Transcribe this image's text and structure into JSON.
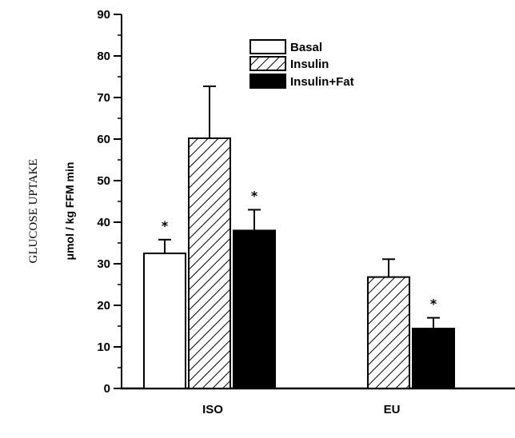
{
  "chart_data": {
    "type": "bar",
    "title": "",
    "ylabel": "GLUCOSE UPTAKE",
    "ylabel_units": "μmol / kg FFM min",
    "ylim": [
      0,
      90
    ],
    "yticks": [
      0,
      10,
      20,
      30,
      40,
      50,
      60,
      70,
      80,
      90
    ],
    "ytick_labels": [
      "0",
      "10",
      "20",
      "30",
      "40",
      "50",
      "60",
      "70",
      "80",
      "90"
    ],
    "categories": [
      "ISO",
      "EU"
    ],
    "grid": false,
    "legend_position": "top-center",
    "series": [
      {
        "name": "Basal",
        "fill": "open",
        "color": "#ffffff",
        "values": [
          32.5,
          null
        ],
        "errors": [
          3.3,
          null
        ],
        "significance": [
          "*",
          null
        ]
      },
      {
        "name": "Insulin",
        "fill": "hatched",
        "color": "#000000",
        "values": [
          60.2,
          26.8
        ],
        "errors": [
          12.5,
          4.3
        ],
        "significance": [
          null,
          null
        ]
      },
      {
        "name": "Insulin+Fat",
        "fill": "solid",
        "color": "#000000",
        "values": [
          38.0,
          14.4
        ],
        "errors": [
          5.0,
          2.6
        ],
        "significance": [
          "*",
          "*"
        ]
      }
    ]
  }
}
